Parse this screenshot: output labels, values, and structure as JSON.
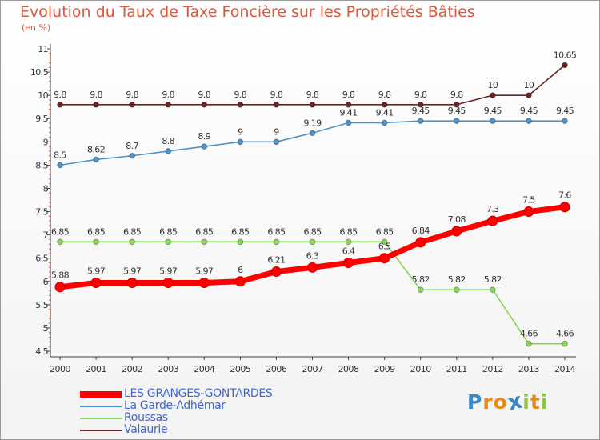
{
  "chart_data": {
    "type": "line",
    "title": "Evolution du Taux de Taxe Foncière sur les Propriétés Bâties",
    "unit_label": "(en %)",
    "xlabel": "",
    "ylabel": "",
    "ylim": [
      4.5,
      11
    ],
    "yticks": [
      "4.5",
      "5",
      "5.5",
      "6",
      "6.5",
      "7",
      "7.5",
      "8",
      "8.5",
      "9",
      "9.5",
      "10",
      "10.5",
      "11"
    ],
    "categories": [
      "2000",
      "2001",
      "2002",
      "2003",
      "2004",
      "2005",
      "2006",
      "2007",
      "2008",
      "2009",
      "2010",
      "2011",
      "2012",
      "2013",
      "2014"
    ],
    "grid": false,
    "series": [
      {
        "name": "LES GRANGES-GONTARDES",
        "color": "#ff0000",
        "values": [
          5.88,
          5.97,
          5.97,
          5.97,
          5.97,
          6,
          6.21,
          6.3,
          6.4,
          6.5,
          6.84,
          7.08,
          7.3,
          7.5,
          7.6
        ],
        "labels": [
          "5.88",
          "5.97",
          "5.97",
          "5.97",
          "5.97",
          "6",
          "6.21",
          "6.3",
          "6.4",
          "6.5",
          "6.84",
          "7.08",
          "7.3",
          "7.5",
          "7.6"
        ]
      },
      {
        "name": "La Garde-Adhémar",
        "color": "#4d92c8",
        "values": [
          8.5,
          8.62,
          8.7,
          8.8,
          8.9,
          9,
          9,
          9.19,
          9.41,
          9.41,
          9.45,
          9.45,
          9.45,
          9.45,
          9.45
        ],
        "labels": [
          "8.5",
          "8.62",
          "8.7",
          "8.8",
          "8.9",
          "9",
          "9",
          "9.19",
          "9.41",
          "9.41",
          "9.45",
          "9.45",
          "9.45",
          "9.45",
          "9.45"
        ]
      },
      {
        "name": "Roussas",
        "color": "#88d455",
        "values": [
          6.85,
          6.85,
          6.85,
          6.85,
          6.85,
          6.85,
          6.85,
          6.85,
          6.85,
          6.85,
          5.82,
          5.82,
          5.82,
          4.66,
          4.66
        ],
        "labels": [
          "6.85",
          "6.85",
          "6.85",
          "6.85",
          "6.85",
          "6.85",
          "6.85",
          "6.85",
          "6.85",
          "6.85",
          "5.82",
          "5.82",
          "5.82",
          "4.66",
          "4.66"
        ]
      },
      {
        "name": "Valaurie",
        "color": "#6b2424",
        "values": [
          9.8,
          9.8,
          9.8,
          9.8,
          9.8,
          9.8,
          9.8,
          9.8,
          9.8,
          9.8,
          9.8,
          9.8,
          10,
          10,
          10.65
        ],
        "labels": [
          "9.8",
          "9.8",
          "9.8",
          "9.8",
          "9.8",
          "9.8",
          "9.8",
          "9.8",
          "9.8",
          "9.8",
          "9.8",
          "9.8",
          "10",
          "10",
          "10.65"
        ]
      }
    ]
  },
  "logo": {
    "text": "Proxiti",
    "colors": [
      "#3a88cc",
      "#e8891a",
      "#e8891a",
      "#3a88cc",
      "#8cc63f",
      "#e8891a",
      "#8cc63f"
    ]
  }
}
